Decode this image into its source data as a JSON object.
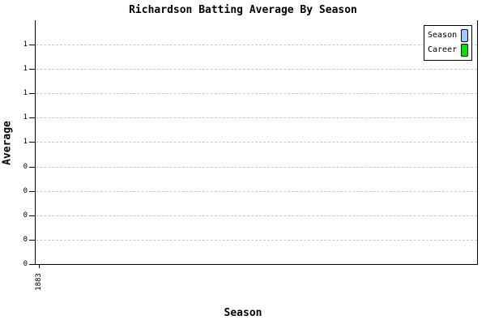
{
  "chart_data": {
    "type": "bar",
    "title": "Richardson Batting Average By Season",
    "xlabel": "Season",
    "ylabel": "Average",
    "categories": [
      "1883"
    ],
    "series": [
      {
        "name": "Season",
        "color": "#99CCFF",
        "values": [
          null
        ]
      },
      {
        "name": "Career",
        "color": "#00E000",
        "values": [
          null
        ]
      }
    ],
    "ylim": [
      0,
      1
    ],
    "y_tick_labels": [
      "1",
      "1",
      "1",
      "1",
      "1",
      "0",
      "0",
      "0",
      "0",
      "0"
    ],
    "grid": "horizontal-dashed",
    "gridline_color": "#C9C9C9",
    "axis_color": "#000000",
    "background_color": "#FFFFFF",
    "legend_position": "top-right"
  }
}
